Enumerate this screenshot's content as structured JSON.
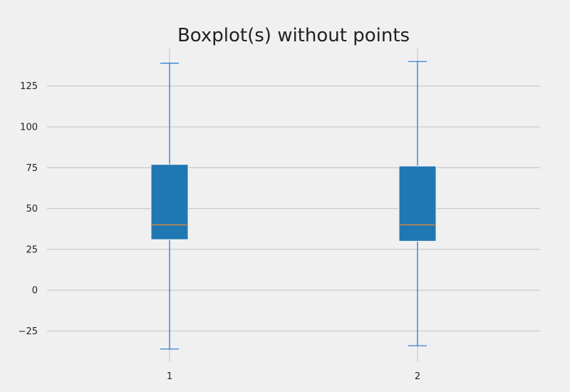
{
  "chart_data": {
    "type": "boxplot",
    "title": "Boxplot(s) without points",
    "xlabel": "",
    "ylabel": "",
    "categories": [
      "1",
      "2"
    ],
    "ylim": [
      -44,
      148
    ],
    "yticks": [
      -25,
      0,
      25,
      50,
      75,
      100,
      125
    ],
    "ytick_labels": [
      "−25",
      "0",
      "25",
      "50",
      "75",
      "100",
      "125"
    ],
    "grid": true,
    "boxes": [
      {
        "label": "1",
        "whisker_low": -36,
        "q1": 31,
        "median": 40,
        "q3": 77,
        "whisker_high": 139
      },
      {
        "label": "2",
        "whisker_low": -34,
        "q1": 30,
        "median": 40,
        "q3": 76,
        "whisker_high": 140
      }
    ],
    "colors": {
      "background": "#f0f0f0",
      "grid": "#cbcbcb",
      "box_fill": "#1f77b4",
      "box_edge": "#f0f0f0",
      "whisker": "#1f77d4",
      "median": "#e48a2c",
      "text": "#222222"
    }
  }
}
